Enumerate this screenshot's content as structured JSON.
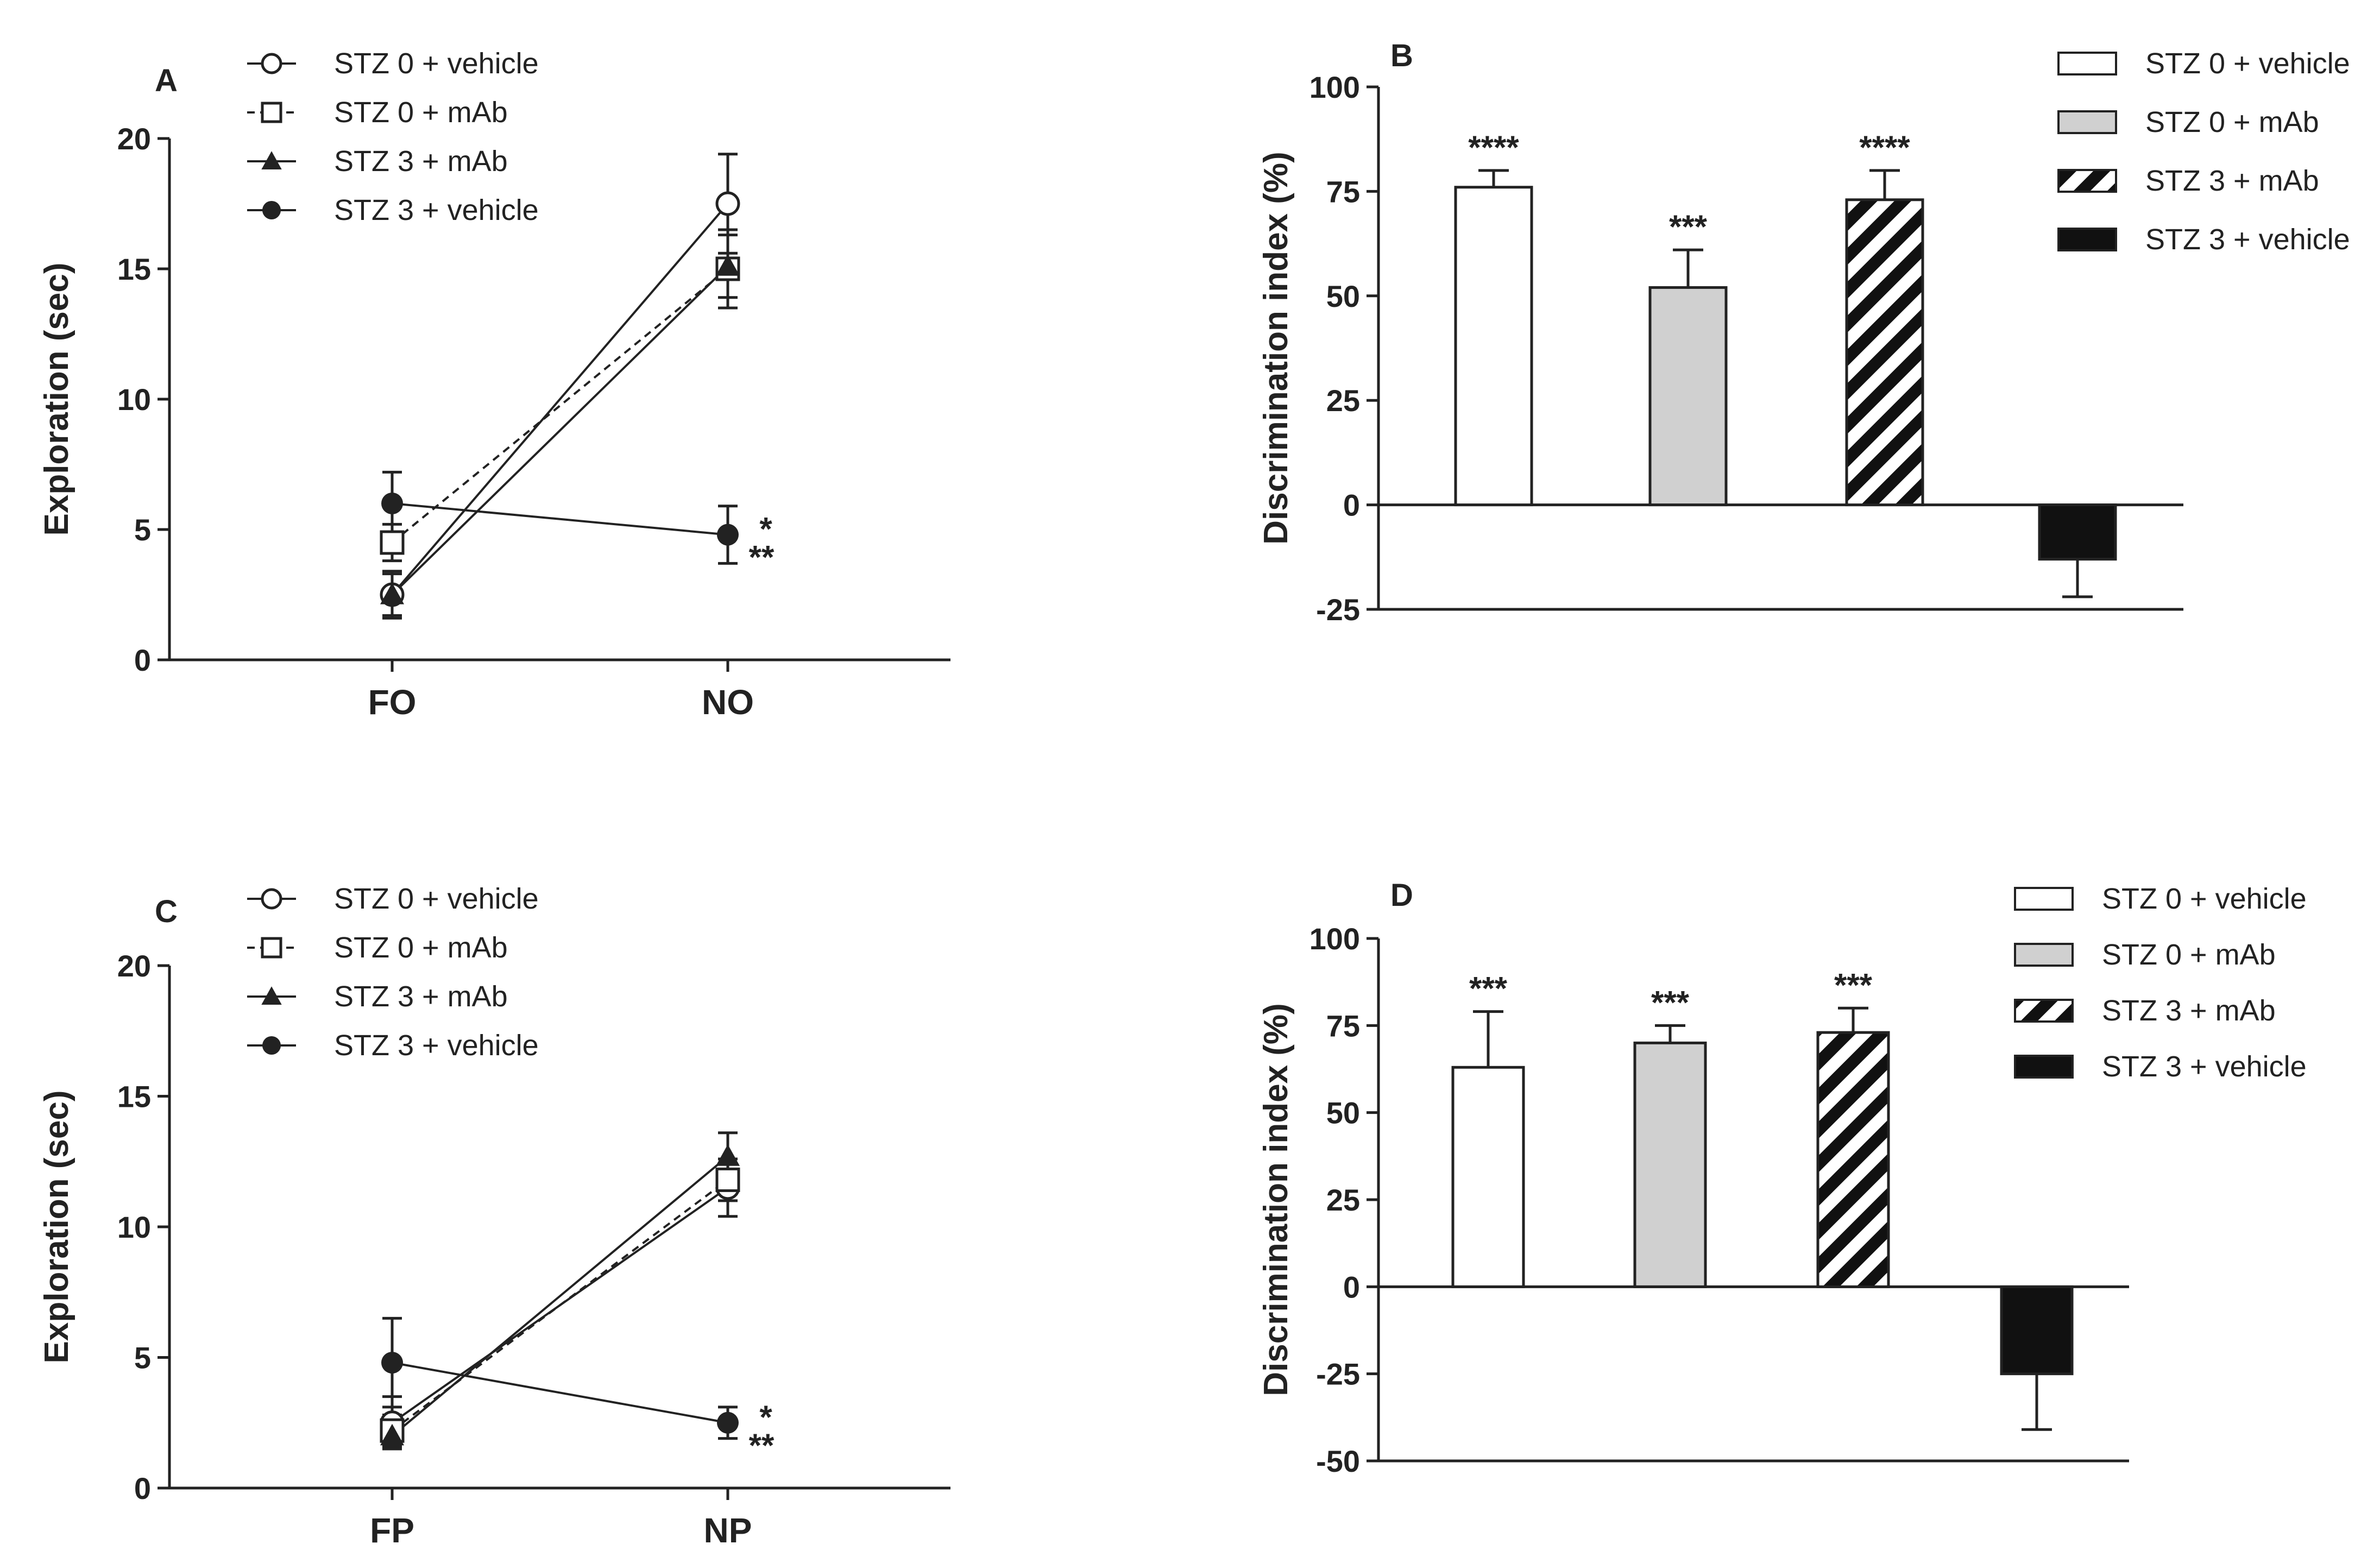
{
  "colors": {
    "ink": "#222222",
    "grey_fill": "#d0d0d0",
    "white": "#ffffff",
    "black": "#111111"
  },
  "legend_labels": [
    "STZ 0 + vehicle",
    "STZ 0 + mAb",
    "STZ 3 + mAb",
    "STZ 3 + vehicle"
  ],
  "chart_data": [
    {
      "panel": "A",
      "type": "line",
      "ylabel": "Exploration (sec)",
      "ylim": [
        0,
        20
      ],
      "yticks": [
        "0",
        "5",
        "10",
        "15",
        "20"
      ],
      "categories": [
        "FO",
        "NO"
      ],
      "legend_position": "top-left",
      "series": [
        {
          "name": "STZ 0 + vehicle",
          "marker": "open-circle",
          "dash": false,
          "values": [
            2.5,
            17.5
          ],
          "errors": [
            0.9,
            1.9
          ]
        },
        {
          "name": "STZ 0 + mAb",
          "marker": "open-square",
          "dash": true,
          "values": [
            4.5,
            15.0
          ],
          "errors": [
            0.7,
            1.5
          ]
        },
        {
          "name": "STZ 3 + mAb",
          "marker": "filled-triangle",
          "dash": false,
          "values": [
            2.5,
            15.1
          ],
          "errors": [
            0.8,
            1.2
          ]
        },
        {
          "name": "STZ 3 + vehicle",
          "marker": "filled-circle",
          "dash": false,
          "values": [
            6.0,
            4.8
          ],
          "errors": [
            1.2,
            1.1
          ]
        }
      ],
      "annotations": [
        "*",
        "**"
      ]
    },
    {
      "panel": "B",
      "type": "bar",
      "ylabel": "Discrimination index (%)",
      "ylim": [
        -25,
        100
      ],
      "yticks": [
        "-25",
        "0",
        "25",
        "50",
        "75",
        "100"
      ],
      "legend_position": "top-right",
      "series": [
        {
          "name": "STZ 0 + vehicle",
          "fill": "white",
          "value": 76,
          "error": 4,
          "sig": "****"
        },
        {
          "name": "STZ 0 + mAb",
          "fill": "grey",
          "value": 52,
          "error": 9,
          "sig": "***"
        },
        {
          "name": "STZ 3 + mAb",
          "fill": "hatched",
          "value": 73,
          "error": 7,
          "sig": "****"
        },
        {
          "name": "STZ 3 + vehicle",
          "fill": "black",
          "value": -13,
          "error": 9,
          "sig": ""
        }
      ]
    },
    {
      "panel": "C",
      "type": "line",
      "ylabel": "Exploration (sec)",
      "ylim": [
        0,
        20
      ],
      "yticks": [
        "0",
        "5",
        "10",
        "15",
        "20"
      ],
      "categories": [
        "FP",
        "NP"
      ],
      "legend_position": "top-left",
      "series": [
        {
          "name": "STZ 0 + vehicle",
          "marker": "open-circle",
          "dash": false,
          "values": [
            2.5,
            11.5
          ],
          "errors": [
            1.0,
            1.1
          ]
        },
        {
          "name": "STZ 0 + mAb",
          "marker": "open-square",
          "dash": true,
          "values": [
            2.2,
            11.8
          ],
          "errors": [
            0.6,
            0.8
          ]
        },
        {
          "name": "STZ 3 + mAb",
          "marker": "filled-triangle",
          "dash": false,
          "values": [
            2.0,
            12.7
          ],
          "errors": [
            0.5,
            0.9
          ]
        },
        {
          "name": "STZ 3 + vehicle",
          "marker": "filled-circle",
          "dash": false,
          "values": [
            4.8,
            2.5
          ],
          "errors": [
            1.7,
            0.6
          ]
        }
      ],
      "annotations": [
        "*",
        "**"
      ]
    },
    {
      "panel": "D",
      "type": "bar",
      "ylabel": "Discrimination index (%)",
      "ylim": [
        -50,
        100
      ],
      "yticks": [
        "-50",
        "-25",
        "0",
        "25",
        "50",
        "75",
        "100"
      ],
      "legend_position": "top-right",
      "series": [
        {
          "name": "STZ 0 + vehicle",
          "fill": "white",
          "value": 63,
          "error": 16,
          "sig": "***"
        },
        {
          "name": "STZ 0 + mAb",
          "fill": "grey",
          "value": 70,
          "error": 5,
          "sig": "***"
        },
        {
          "name": "STZ 3 + mAb",
          "fill": "hatched",
          "value": 73,
          "error": 7,
          "sig": "***"
        },
        {
          "name": "STZ 3 + vehicle",
          "fill": "black",
          "value": -25,
          "error": 16,
          "sig": ""
        }
      ]
    }
  ]
}
